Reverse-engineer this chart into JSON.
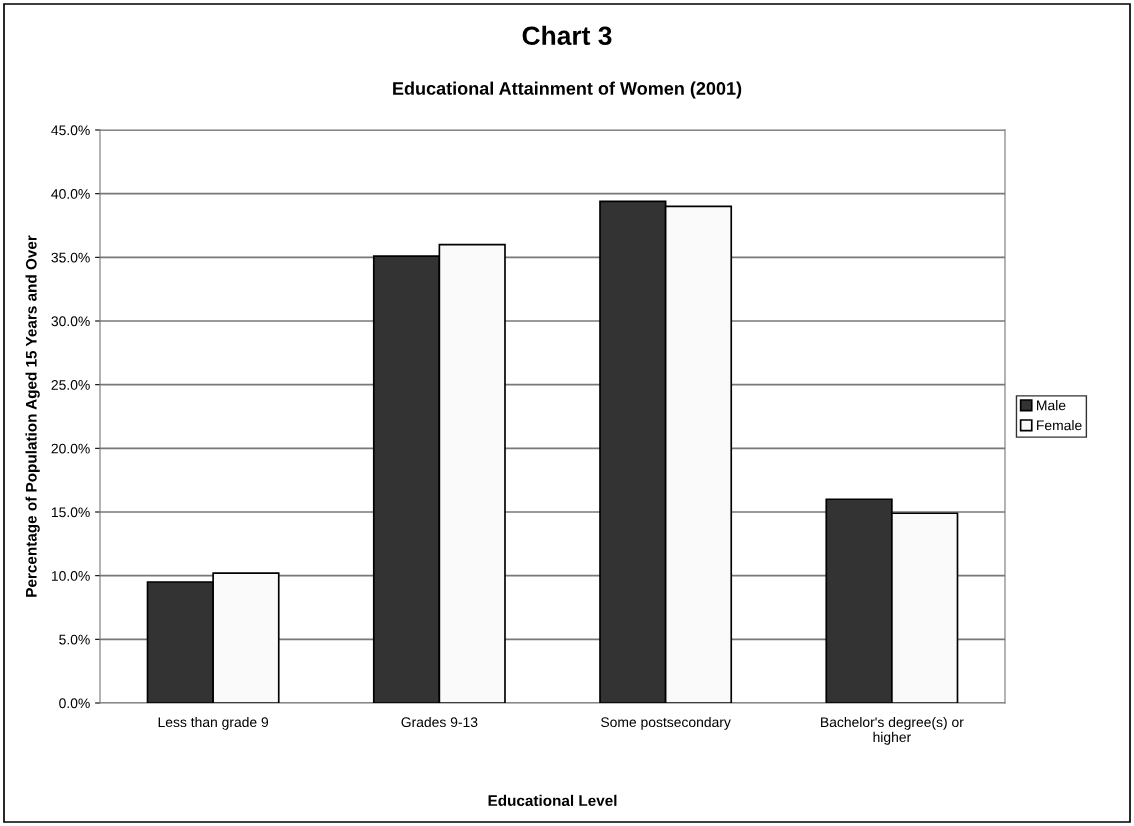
{
  "chart_data": {
    "type": "bar",
    "title": "Chart 3",
    "subtitle": "Educational Attainment of Women (2001)",
    "xlabel": "Educational Level",
    "ylabel": "Percentage of Population Aged 15 Years and Over",
    "categories": [
      "Less than grade 9",
      "Grades 9-13",
      "Some postsecondary",
      "Bachelor's degree(s) or\nhigher"
    ],
    "series": [
      {
        "name": "Male",
        "color": "#333333",
        "values": [
          9.5,
          35.1,
          39.4,
          16.0
        ]
      },
      {
        "name": "Female",
        "color": "#fafafa",
        "values": [
          10.2,
          36.0,
          39.0,
          14.9
        ]
      }
    ],
    "ylim": [
      0,
      45
    ],
    "yticks": [
      {
        "value": 0,
        "label": "0.0%"
      },
      {
        "value": 5,
        "label": "5.0%"
      },
      {
        "value": 10,
        "label": "10.0%"
      },
      {
        "value": 15,
        "label": "15.0%"
      },
      {
        "value": 20,
        "label": "20.0%"
      },
      {
        "value": 25,
        "label": "25.0%"
      },
      {
        "value": 30,
        "label": "30.0%"
      },
      {
        "value": 35,
        "label": "35.0%"
      },
      {
        "value": 40,
        "label": "40.0%"
      },
      {
        "value": 45,
        "label": "45.0%"
      }
    ],
    "grid": "y",
    "legend": "right"
  }
}
